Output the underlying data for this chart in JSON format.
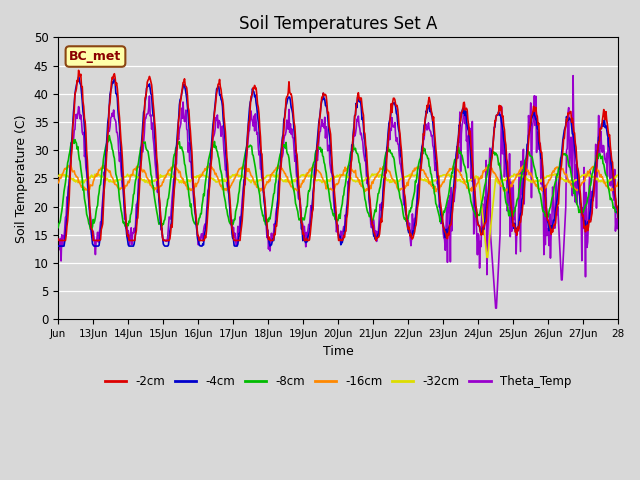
{
  "title": "Soil Temperatures Set A",
  "xlabel": "Time",
  "ylabel": "Soil Temperature (C)",
  "ylim": [
    0,
    50
  ],
  "bg_color": "#d8d8d8",
  "plot_bg_color": "#d8d8d8",
  "series": {
    "-2cm": {
      "color": "#dd0000",
      "lw": 1.2
    },
    "-4cm": {
      "color": "#0000cc",
      "lw": 1.2
    },
    "-8cm": {
      "color": "#00bb00",
      "lw": 1.2
    },
    "-16cm": {
      "color": "#ff8800",
      "lw": 1.2
    },
    "-32cm": {
      "color": "#dddd00",
      "lw": 1.2
    },
    "Theta_Temp": {
      "color": "#9900cc",
      "lw": 1.2
    }
  },
  "annotation": {
    "text": "BC_met",
    "facecolor": "#ffffaa",
    "edgecolor": "#8B4513",
    "textcolor": "#8B0000",
    "fontsize": 9,
    "fontweight": "bold"
  },
  "xtick_labels": [
    "Jun",
    "13Jun",
    "14Jun",
    "15Jun",
    "16Jun",
    "17Jun",
    "18Jun",
    "19Jun",
    "20Jun",
    "21Jun",
    "22Jun",
    "23Jun",
    "24Jun",
    "25Jun",
    "26Jun",
    "27Jun",
    "28"
  ],
  "n_days": 16,
  "pts_per_day": 48
}
